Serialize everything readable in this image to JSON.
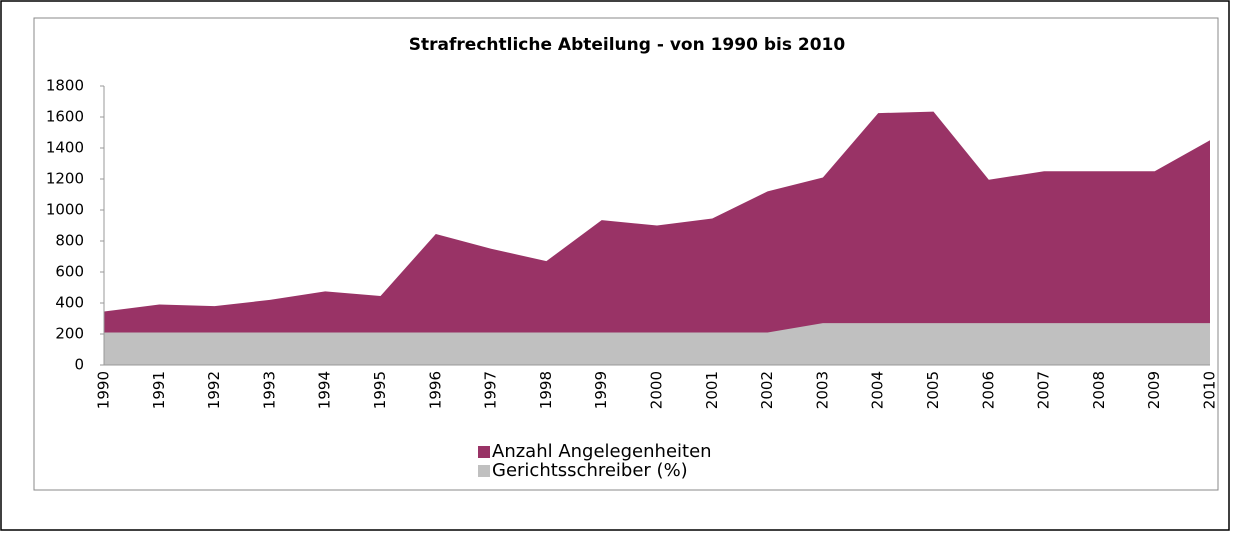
{
  "chart_data": {
    "type": "area",
    "title": "Strafrechtliche Abteilung - von 1990 bis 2010",
    "categories": [
      "1990",
      "1991",
      "1992",
      "1993",
      "1994",
      "1995",
      "1996",
      "1997",
      "1998",
      "1999",
      "2000",
      "2001",
      "2002",
      "2003",
      "2004",
      "2005",
      "2006",
      "2007",
      "2008",
      "2009",
      "2010"
    ],
    "series": [
      {
        "name": "Anzahl Angelegenheiten",
        "color": "#993366",
        "values": [
          345,
          390,
          380,
          420,
          475,
          445,
          845,
          750,
          670,
          935,
          900,
          945,
          1120,
          1210,
          1625,
          1635,
          1195,
          1250,
          1250,
          1250,
          1450
        ]
      },
      {
        "name": "Gerichtsschreiber (%)",
        "color": "#c0c0c0",
        "values": [
          210,
          210,
          210,
          210,
          210,
          210,
          210,
          210,
          210,
          210,
          210,
          210,
          210,
          270,
          270,
          270,
          270,
          270,
          270,
          270,
          270
        ]
      }
    ],
    "ylim": [
      0,
      1800
    ],
    "yticks": [
      0,
      200,
      400,
      600,
      800,
      1000,
      1200,
      1400,
      1600,
      1800
    ],
    "grid": false,
    "legend": "bottom"
  }
}
